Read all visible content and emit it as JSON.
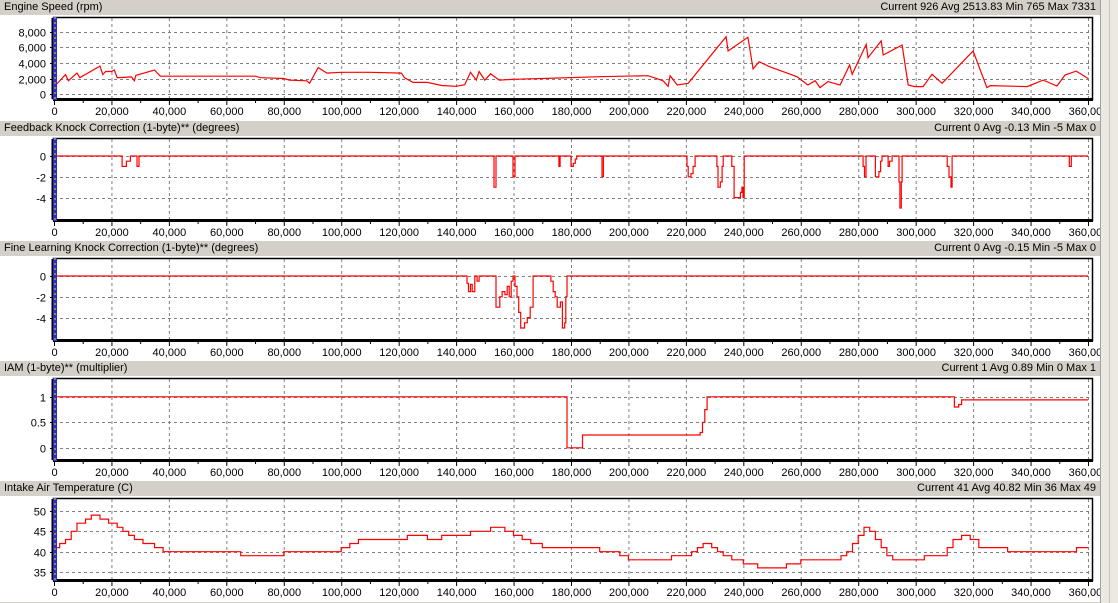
{
  "colors": {
    "line": "#ff0000",
    "grid": "#808080",
    "header_bg": "#d4d0c8",
    "cursor": "#2a2ad0",
    "cursor_dash": "#e8e000"
  },
  "chart_data": [
    {
      "type": "line",
      "title": "Engine Speed (rpm)",
      "stats": "Current 926 Avg 2513.83 Min 765 Max 7331",
      "xlim": [
        0,
        361400
      ],
      "ylim": [
        -645,
        9806
      ],
      "grid": true,
      "step": false,
      "xticks": [
        "0",
        "20,000",
        "40,000",
        "60,000",
        "80,000",
        "100,000",
        "120,000",
        "140,000",
        "160,000",
        "180,000",
        "200,000",
        "220,000",
        "240,000",
        "260,000",
        "280,000",
        "300,000",
        "320,000",
        "340,000",
        "360,000"
      ],
      "yticks": [
        {
          "v": 0,
          "label": "0"
        },
        {
          "v": 2000,
          "label": "2,000"
        },
        {
          "v": 4000,
          "label": "4,000"
        },
        {
          "v": 6000,
          "label": "6,000"
        },
        {
          "v": 8000,
          "label": "8,000"
        }
      ],
      "points": [
        [
          0,
          900
        ],
        [
          4000,
          2500
        ],
        [
          5000,
          1700
        ],
        [
          8000,
          2700
        ],
        [
          9000,
          2100
        ],
        [
          16000,
          3600
        ],
        [
          17000,
          2500
        ],
        [
          18000,
          2900
        ],
        [
          20000,
          2900
        ],
        [
          21000,
          3100
        ],
        [
          22000,
          2100
        ],
        [
          27000,
          2200
        ],
        [
          28000,
          1700
        ],
        [
          28500,
          2400
        ],
        [
          35000,
          3100
        ],
        [
          37000,
          2300
        ],
        [
          60000,
          2300
        ],
        [
          70000,
          2300
        ],
        [
          72000,
          2100
        ],
        [
          80000,
          2000
        ],
        [
          82000,
          1800
        ],
        [
          88000,
          1700
        ],
        [
          89000,
          1400
        ],
        [
          92000,
          3400
        ],
        [
          95000,
          2700
        ],
        [
          100000,
          2800
        ],
        [
          110000,
          2800
        ],
        [
          121000,
          2700
        ],
        [
          122000,
          2100
        ],
        [
          125000,
          1500
        ],
        [
          130000,
          1500
        ],
        [
          135000,
          1100
        ],
        [
          140000,
          1000
        ],
        [
          143000,
          1200
        ],
        [
          145000,
          2800
        ],
        [
          147000,
          1800
        ],
        [
          148000,
          2900
        ],
        [
          150000,
          1800
        ],
        [
          152000,
          2600
        ],
        [
          155000,
          1800
        ],
        [
          160000,
          1900
        ],
        [
          170000,
          2000
        ],
        [
          190000,
          2230
        ],
        [
          206800,
          2360
        ],
        [
          212000,
          1720
        ],
        [
          213800,
          990
        ],
        [
          214500,
          2360
        ],
        [
          217000,
          1160
        ],
        [
          220800,
          1380
        ],
        [
          234000,
          7390
        ],
        [
          234700,
          5550
        ],
        [
          241600,
          7310
        ],
        [
          243400,
          3220
        ],
        [
          245500,
          4170
        ],
        [
          249000,
          3530
        ],
        [
          258700,
          2230
        ],
        [
          262500,
          1160
        ],
        [
          265000,
          1720
        ],
        [
          266700,
          820
        ],
        [
          269500,
          1600
        ],
        [
          273700,
          1160
        ],
        [
          277000,
          3740
        ],
        [
          277900,
          2540
        ],
        [
          282800,
          6410
        ],
        [
          283400,
          4690
        ],
        [
          288000,
          6850
        ],
        [
          288700,
          5030
        ],
        [
          295300,
          6320
        ],
        [
          297400,
          1160
        ],
        [
          299700,
          950
        ],
        [
          302600,
          950
        ],
        [
          305700,
          2540
        ],
        [
          309200,
          1380
        ],
        [
          320000,
          5550
        ],
        [
          324800,
          820
        ],
        [
          326000,
          1080
        ],
        [
          338800,
          950
        ],
        [
          344400,
          1800
        ],
        [
          349200,
          1030
        ],
        [
          352000,
          2450
        ],
        [
          355900,
          2960
        ],
        [
          360000,
          2010
        ]
      ]
    },
    {
      "type": "line",
      "title": "Feedback Knock Correction (1-byte)** (degrees)",
      "stats": "Current 0 Avg -0.13 Min -5 Max 0",
      "xlim": [
        0,
        361400
      ],
      "ylim": [
        -6.15,
        1.63
      ],
      "grid": true,
      "step": true,
      "xticks": [
        "0",
        "20,000",
        "40,000",
        "60,000",
        "80,000",
        "100,000",
        "120,000",
        "140,000",
        "160,000",
        "180,000",
        "200,000",
        "220,000",
        "240,000",
        "260,000",
        "280,000",
        "300,000",
        "320,000",
        "340,000",
        "360,000"
      ],
      "yticks": [
        {
          "v": -4,
          "label": "-4"
        },
        {
          "v": -2,
          "label": "-2"
        },
        {
          "v": 0,
          "label": "0"
        }
      ],
      "points": [
        [
          0,
          0
        ],
        [
          23700,
          -1
        ],
        [
          25200,
          -0.5
        ],
        [
          26600,
          0
        ],
        [
          28900,
          -1
        ],
        [
          29600,
          0
        ],
        [
          153200,
          -3
        ],
        [
          153900,
          0
        ],
        [
          159800,
          -2
        ],
        [
          160500,
          0
        ],
        [
          175800,
          -1
        ],
        [
          176200,
          0
        ],
        [
          180000,
          -1
        ],
        [
          180800,
          -0.7
        ],
        [
          181500,
          -0.3
        ],
        [
          182000,
          0
        ],
        [
          190800,
          -2
        ],
        [
          191300,
          0
        ],
        [
          220400,
          -1
        ],
        [
          220800,
          -2
        ],
        [
          221800,
          -1.7
        ],
        [
          222500,
          -1
        ],
        [
          223200,
          0
        ],
        [
          230800,
          -1
        ],
        [
          231200,
          -3
        ],
        [
          232000,
          -2.5
        ],
        [
          232600,
          -1
        ],
        [
          233000,
          0
        ],
        [
          236000,
          -1
        ],
        [
          236800,
          -4
        ],
        [
          239000,
          -3.5
        ],
        [
          239500,
          -3
        ],
        [
          239900,
          -4
        ],
        [
          240300,
          0
        ],
        [
          281700,
          -1
        ],
        [
          282200,
          -2
        ],
        [
          282700,
          0
        ],
        [
          286000,
          -2
        ],
        [
          287200,
          -1.5
        ],
        [
          287800,
          -0.5
        ],
        [
          288300,
          0
        ],
        [
          290400,
          -1
        ],
        [
          290900,
          -0.5
        ],
        [
          291800,
          0
        ],
        [
          294200,
          -2.5
        ],
        [
          294500,
          -5
        ],
        [
          295000,
          -2.5
        ],
        [
          295300,
          0
        ],
        [
          311000,
          -1
        ],
        [
          311600,
          -2
        ],
        [
          312300,
          -3
        ],
        [
          312700,
          0
        ],
        [
          353500,
          -1
        ],
        [
          354200,
          0
        ],
        [
          360000,
          0
        ]
      ]
    },
    {
      "type": "line",
      "title": "Fine Learning Knock Correction (1-byte)** (degrees)",
      "stats": "Current 0 Avg -0.15 Min -5 Max 0",
      "xlim": [
        0,
        361400
      ],
      "ylim": [
        -6.15,
        1.63
      ],
      "grid": true,
      "step": true,
      "xticks": [
        "0",
        "20,000",
        "40,000",
        "60,000",
        "80,000",
        "100,000",
        "120,000",
        "140,000",
        "160,000",
        "180,000",
        "200,000",
        "220,000",
        "240,000",
        "260,000",
        "280,000",
        "300,000",
        "320,000",
        "340,000",
        "360,000"
      ],
      "yticks": [
        {
          "v": -4,
          "label": "-4"
        },
        {
          "v": -2,
          "label": "-2"
        },
        {
          "v": 0,
          "label": "0"
        }
      ],
      "points": [
        [
          0,
          0
        ],
        [
          143800,
          -0.7
        ],
        [
          144300,
          -1.5
        ],
        [
          145000,
          -0.8
        ],
        [
          145600,
          -1.5
        ],
        [
          146500,
          0
        ],
        [
          147300,
          -0.5
        ],
        [
          148000,
          0
        ],
        [
          153900,
          -3
        ],
        [
          155200,
          -2
        ],
        [
          156000,
          -1.5
        ],
        [
          157000,
          -1.8
        ],
        [
          157800,
          -1
        ],
        [
          158500,
          -2
        ],
        [
          159200,
          -0.5
        ],
        [
          159800,
          0
        ],
        [
          160500,
          -1
        ],
        [
          161200,
          -2
        ],
        [
          161800,
          -3.5
        ],
        [
          162500,
          -5
        ],
        [
          163800,
          -4.5
        ],
        [
          164800,
          -4
        ],
        [
          165800,
          -3
        ],
        [
          166800,
          0
        ],
        [
          173000,
          -0.5
        ],
        [
          173800,
          -1.5
        ],
        [
          174500,
          -2
        ],
        [
          175200,
          -3
        ],
        [
          176300,
          -2.5
        ],
        [
          177000,
          -5
        ],
        [
          177800,
          -4.5
        ],
        [
          178200,
          -2
        ],
        [
          178600,
          0
        ],
        [
          360000,
          0
        ]
      ]
    },
    {
      "type": "line",
      "title": "IAM (1-byte)** (multiplier)",
      "stats": "Current 1 Avg 0.89 Min 0 Max 1",
      "xlim": [
        0,
        361400
      ],
      "ylim": [
        -0.24,
        1.35
      ],
      "grid": true,
      "step": true,
      "xticks": [
        "0",
        "20,000",
        "40,000",
        "60,000",
        "80,000",
        "100,000",
        "120,000",
        "140,000",
        "160,000",
        "180,000",
        "200,000",
        "220,000",
        "240,000",
        "260,000",
        "280,000",
        "300,000",
        "320,000",
        "340,000",
        "360,000"
      ],
      "yticks": [
        {
          "v": 0,
          "label": "0"
        },
        {
          "v": 0.5,
          "label": "0.5"
        },
        {
          "v": 1,
          "label": "1"
        }
      ],
      "points": [
        [
          0,
          1
        ],
        [
          178600,
          0
        ],
        [
          184000,
          0.25
        ],
        [
          225000,
          0.3
        ],
        [
          225800,
          0.5
        ],
        [
          226600,
          0.75
        ],
        [
          227400,
          1
        ],
        [
          313500,
          0.8
        ],
        [
          315000,
          0.85
        ],
        [
          316000,
          0.94
        ],
        [
          360000,
          0.94
        ]
      ]
    },
    {
      "type": "line",
      "title": "Intake Air Temperature (C)",
      "stats": "Current 41 Avg 40.82 Min 36 Max 49",
      "xlim": [
        0,
        361400
      ],
      "ylim": [
        33.03,
        52.95
      ],
      "grid": true,
      "step": true,
      "xticks": [
        "0",
        "20,000",
        "40,000",
        "60,000",
        "80,000",
        "100,000",
        "120,000",
        "140,000",
        "160,000",
        "180,000",
        "200,000",
        "220,000",
        "240,000",
        "260,000",
        "280,000",
        "300,000",
        "320,000",
        "340,000",
        "360,000"
      ],
      "yticks": [
        {
          "v": 35,
          "label": "35"
        },
        {
          "v": 40,
          "label": "40"
        },
        {
          "v": 45,
          "label": "45"
        },
        {
          "v": 50,
          "label": "50"
        }
      ],
      "points": [
        [
          0,
          41
        ],
        [
          2000,
          42
        ],
        [
          4000,
          43
        ],
        [
          6000,
          45
        ],
        [
          8000,
          47
        ],
        [
          11000,
          48
        ],
        [
          13000,
          49
        ],
        [
          16000,
          48
        ],
        [
          19000,
          47
        ],
        [
          22000,
          46
        ],
        [
          24000,
          45
        ],
        [
          26000,
          44
        ],
        [
          28000,
          43
        ],
        [
          31000,
          42
        ],
        [
          35000,
          41
        ],
        [
          38000,
          40
        ],
        [
          65000,
          39
        ],
        [
          80000,
          40
        ],
        [
          100000,
          41
        ],
        [
          103000,
          42
        ],
        [
          106000,
          43
        ],
        [
          120000,
          43
        ],
        [
          123000,
          44
        ],
        [
          130000,
          43
        ],
        [
          135000,
          44
        ],
        [
          145000,
          45
        ],
        [
          152000,
          46
        ],
        [
          157000,
          45
        ],
        [
          160000,
          44
        ],
        [
          163000,
          43
        ],
        [
          166000,
          42
        ],
        [
          170000,
          41
        ],
        [
          180000,
          41
        ],
        [
          190000,
          40
        ],
        [
          197000,
          39
        ],
        [
          200000,
          38
        ],
        [
          215000,
          39
        ],
        [
          222000,
          40
        ],
        [
          224000,
          41
        ],
        [
          226000,
          42
        ],
        [
          229000,
          41
        ],
        [
          231000,
          40
        ],
        [
          233000,
          39
        ],
        [
          236000,
          38
        ],
        [
          240000,
          37
        ],
        [
          245000,
          36
        ],
        [
          255000,
          37
        ],
        [
          260000,
          38
        ],
        [
          270000,
          38
        ],
        [
          274000,
          39
        ],
        [
          276000,
          40
        ],
        [
          278000,
          42
        ],
        [
          280000,
          44
        ],
        [
          282000,
          46
        ],
        [
          284000,
          45
        ],
        [
          286000,
          43
        ],
        [
          288000,
          41
        ],
        [
          290000,
          39
        ],
        [
          292000,
          38
        ],
        [
          300000,
          38
        ],
        [
          303000,
          39
        ],
        [
          308000,
          39
        ],
        [
          311000,
          41
        ],
        [
          313000,
          43
        ],
        [
          316000,
          44
        ],
        [
          319000,
          43
        ],
        [
          322000,
          41
        ],
        [
          332000,
          40
        ],
        [
          350000,
          40
        ],
        [
          356000,
          41
        ],
        [
          360000,
          41
        ]
      ]
    }
  ]
}
